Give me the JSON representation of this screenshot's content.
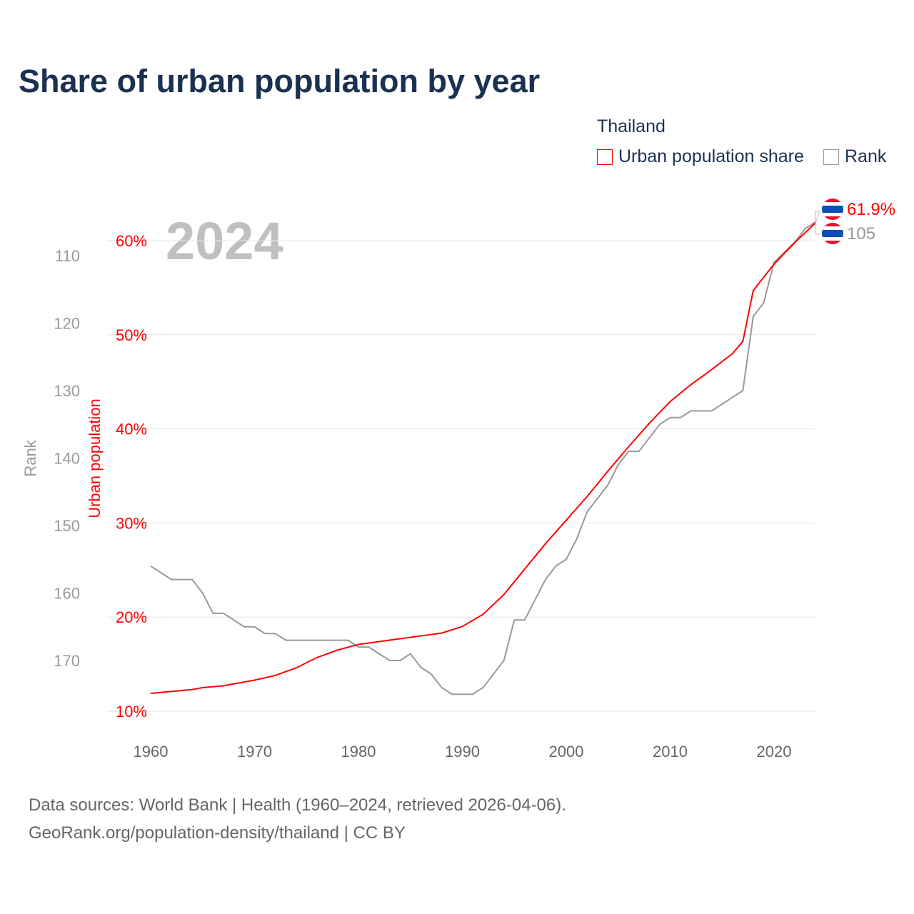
{
  "title": "Share of urban population by year",
  "legend": {
    "title": "Thailand",
    "items": [
      {
        "label": "Urban population share",
        "color": "#ff0000"
      },
      {
        "label": "Rank",
        "color": "#999999"
      }
    ]
  },
  "footer": {
    "line1": "Data sources: World Bank | Health (1960–2024, retrieved 2026-04-06).",
    "line2": "GeoRank.org/population-density/thailand | CC BY"
  },
  "chart_data": {
    "type": "line",
    "year_watermark": "2024",
    "xlabel": "",
    "xlim": [
      1960,
      2024
    ],
    "xticks": [
      1960,
      1970,
      1980,
      1990,
      2000,
      2010,
      2020
    ],
    "y_left_outer": {
      "label": "Rank",
      "ticks": [
        110,
        120,
        130,
        140,
        150,
        160,
        170
      ],
      "range": [
        110,
        170
      ],
      "inverted": true
    },
    "y_left_inner": {
      "label": "Urban population",
      "ticks": [
        "10%",
        "20%",
        "30%",
        "40%",
        "50%",
        "60%"
      ],
      "values": [
        10,
        20,
        30,
        40,
        50,
        60
      ]
    },
    "end_labels": {
      "urban": "61.9%",
      "rank": "105"
    },
    "series": [
      {
        "name": "Urban population share",
        "color": "#ff0000",
        "x": [
          1960,
          1962,
          1964,
          1965,
          1967,
          1970,
          1972,
          1974,
          1976,
          1978,
          1980,
          1982,
          1984,
          1986,
          1988,
          1990,
          1992,
          1994,
          1996,
          1998,
          2000,
          2002,
          2004,
          2006,
          2008,
          2010,
          2012,
          2014,
          2016,
          2017,
          2018,
          2020,
          2022,
          2024
        ],
        "y": [
          11.9,
          12.1,
          12.3,
          12.5,
          12.7,
          13.3,
          13.8,
          14.6,
          15.7,
          16.5,
          17.1,
          17.4,
          17.7,
          18.0,
          18.3,
          19.0,
          20.3,
          22.4,
          25.1,
          27.8,
          30.3,
          32.8,
          35.5,
          38.1,
          40.6,
          42.9,
          44.7,
          46.3,
          48.0,
          49.3,
          54.7,
          57.5,
          59.8,
          61.9
        ]
      },
      {
        "name": "Rank",
        "color": "#999999",
        "x": [
          1960,
          1962,
          1964,
          1965,
          1966,
          1967,
          1969,
          1970,
          1971,
          1972,
          1973,
          1979,
          1980,
          1981,
          1983,
          1984,
          1985,
          1986,
          1987,
          1988,
          1989,
          1991,
          1992,
          1994,
          1995,
          1996,
          1998,
          1999,
          2000,
          2001,
          2002,
          2004,
          2005,
          2006,
          2007,
          2009,
          2010,
          2011,
          2012,
          2014,
          2017,
          2018,
          2019,
          2020,
          2022,
          2023,
          2024
        ],
        "y": [
          156,
          158,
          158,
          160,
          163,
          163,
          165,
          165,
          166,
          166,
          167,
          167,
          168,
          168,
          170,
          170,
          169,
          171,
          172,
          174,
          175,
          175,
          174,
          170,
          164,
          164,
          158,
          156,
          155,
          152,
          148,
          144,
          141,
          139,
          139,
          135,
          134,
          134,
          133,
          133,
          130,
          119,
          117,
          111,
          108,
          106,
          105
        ]
      }
    ]
  }
}
